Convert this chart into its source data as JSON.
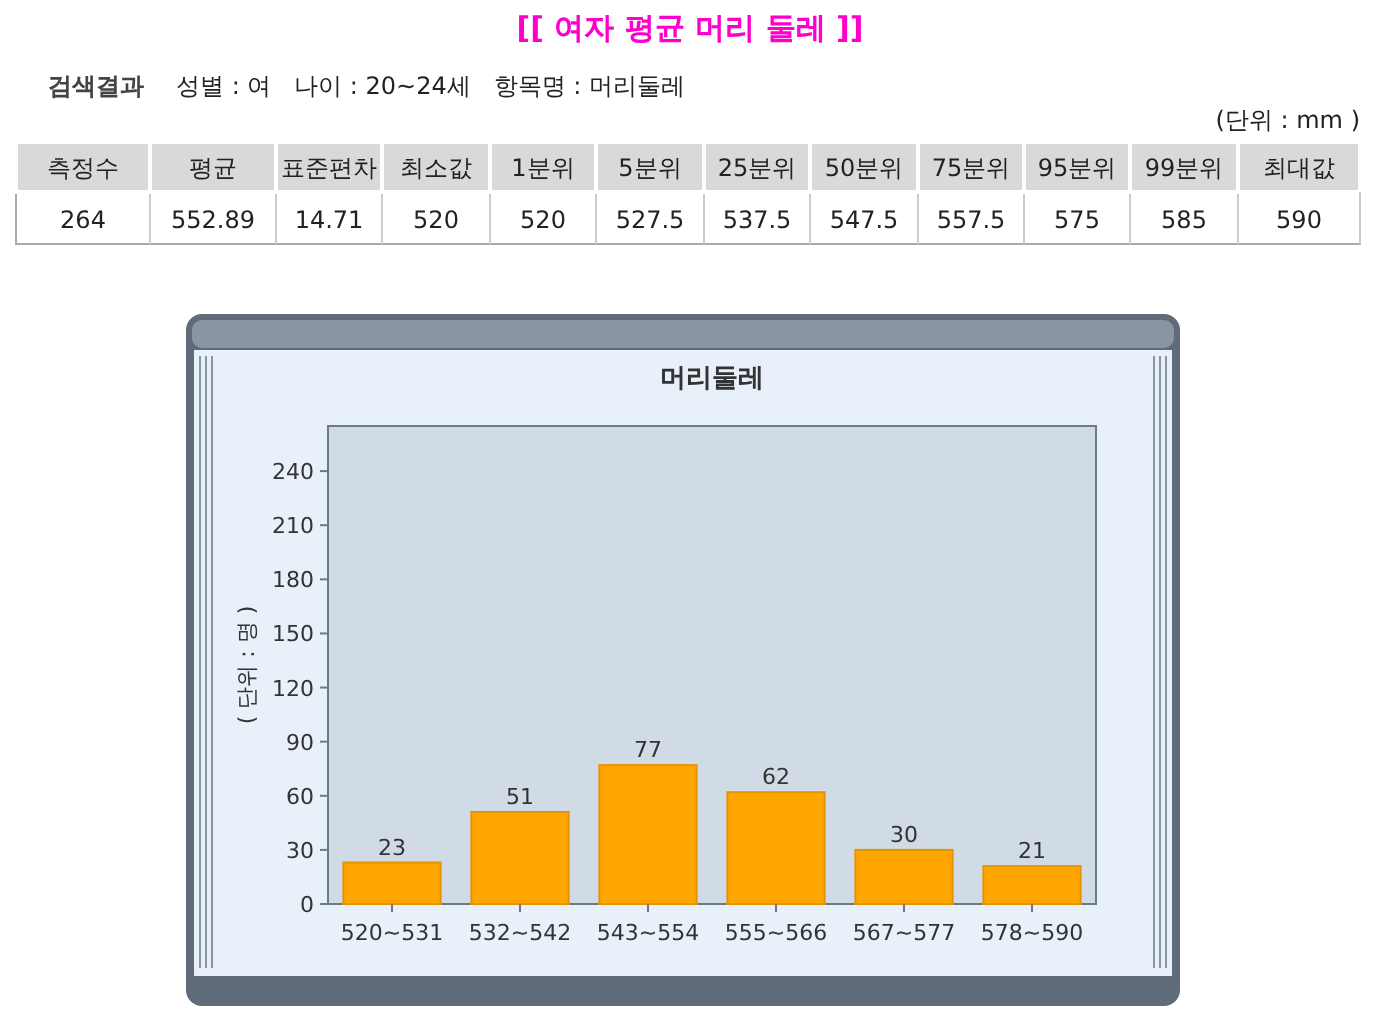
{
  "chart_data": [
    {
      "type": "other",
      "title": "[[ 여자 평균 머리 둘레 ]]",
      "annotations": [
        "검색결과",
        "성별 : 여   나이 : 20~24세   항목명 : 머리둘레",
        "(단위 : mm )"
      ],
      "categories": [
        "측정수",
        "평균",
        "표준편차",
        "최소값",
        "1분위",
        "5분위",
        "25분위",
        "50분위",
        "75분위",
        "95분위",
        "99분위",
        "최대값"
      ],
      "values": [
        264,
        552.89,
        14.71,
        520,
        520,
        527.5,
        537.5,
        547.5,
        557.5,
        575,
        585,
        590
      ],
      "data_labels": true
    },
    {
      "type": "bar",
      "title": "머리둘레",
      "ylabel": "( 단위 : 명 )",
      "categories": [
        "520~531",
        "532~542",
        "543~554",
        "555~566",
        "567~577",
        "578~590"
      ],
      "values": [
        23,
        51,
        77,
        62,
        30,
        21
      ],
      "color": "#ffa500",
      "ylim": [
        0,
        265
      ],
      "yticks": [
        0,
        30,
        60,
        90,
        120,
        150,
        180,
        210,
        240
      ],
      "data_labels": true,
      "grid": false
    }
  ]
}
